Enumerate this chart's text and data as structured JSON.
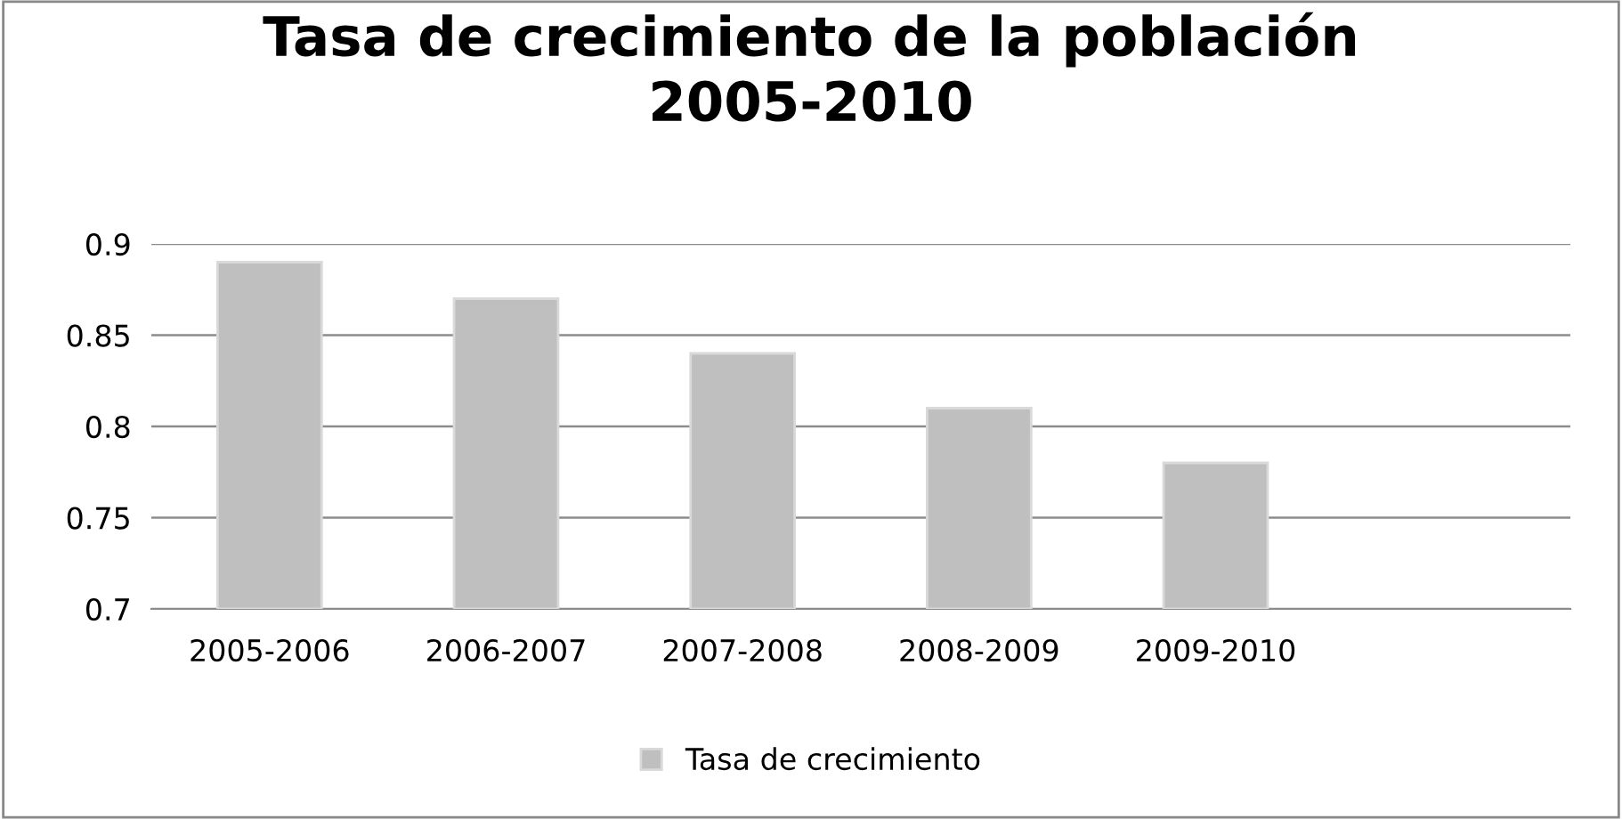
{
  "chart_data": {
    "type": "bar",
    "title": "Tasa de crecimiento de la población\n2005-2010",
    "categories": [
      "2005-2006",
      "2006-2007",
      "2007-2008",
      "2008-2009",
      "2009-2010",
      null
    ],
    "series": [
      {
        "name": "Tasa de crecimiento",
        "color": "#bfbfbf",
        "values": [
          0.89,
          0.87,
          0.84,
          0.81,
          0.78,
          null
        ]
      }
    ],
    "ylim": [
      0.7,
      0.9
    ],
    "yticks": [
      0.7,
      0.75,
      0.8,
      0.85,
      0.9
    ],
    "grid": "y",
    "legend": "bottom"
  }
}
